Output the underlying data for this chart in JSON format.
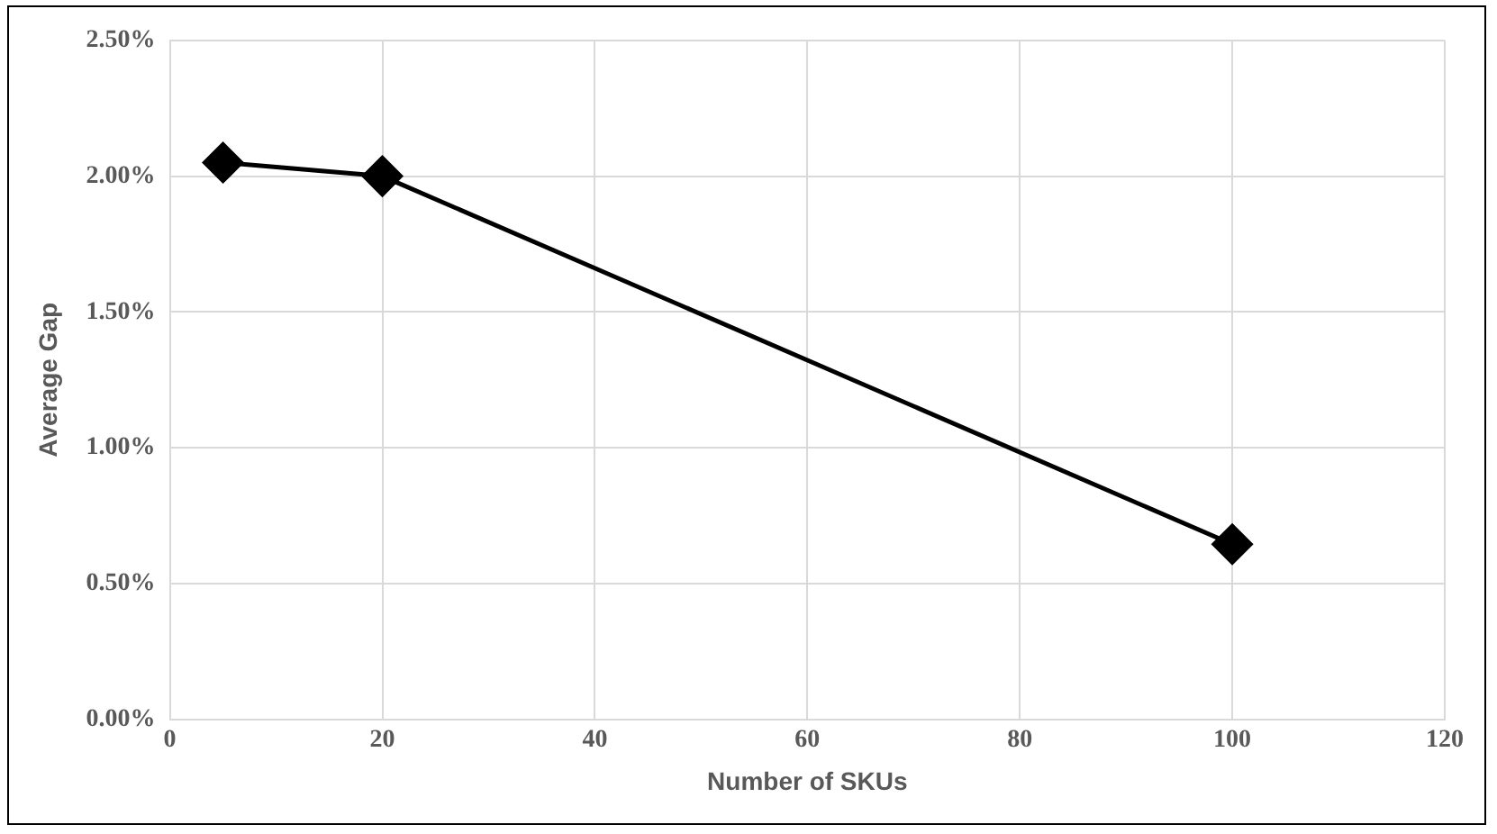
{
  "chart_data": {
    "type": "line",
    "xlabel": "Number of SKUs",
    "ylabel": "Average Gap",
    "x": [
      5,
      20,
      100
    ],
    "series": [
      {
        "color": "#000000",
        "values": [
          2.05,
          2.0,
          0.645
        ]
      }
    ],
    "xlim": [
      0,
      120
    ],
    "xticks": [
      0,
      20,
      40,
      60,
      80,
      100,
      120
    ],
    "ylim": [
      0,
      2.5
    ],
    "yticks": [
      {
        "value": 0,
        "label": "0.00%"
      },
      {
        "value": 0.5,
        "label": "0.50%"
      },
      {
        "value": 1,
        "label": "1.00%"
      },
      {
        "value": 1.5,
        "label": "1.50%"
      },
      {
        "value": 2,
        "label": "2.00%"
      },
      {
        "value": 2.5,
        "label": "2.50%"
      }
    ],
    "grid": true,
    "legend": false,
    "marker": "diamond",
    "line_style": "solid"
  }
}
